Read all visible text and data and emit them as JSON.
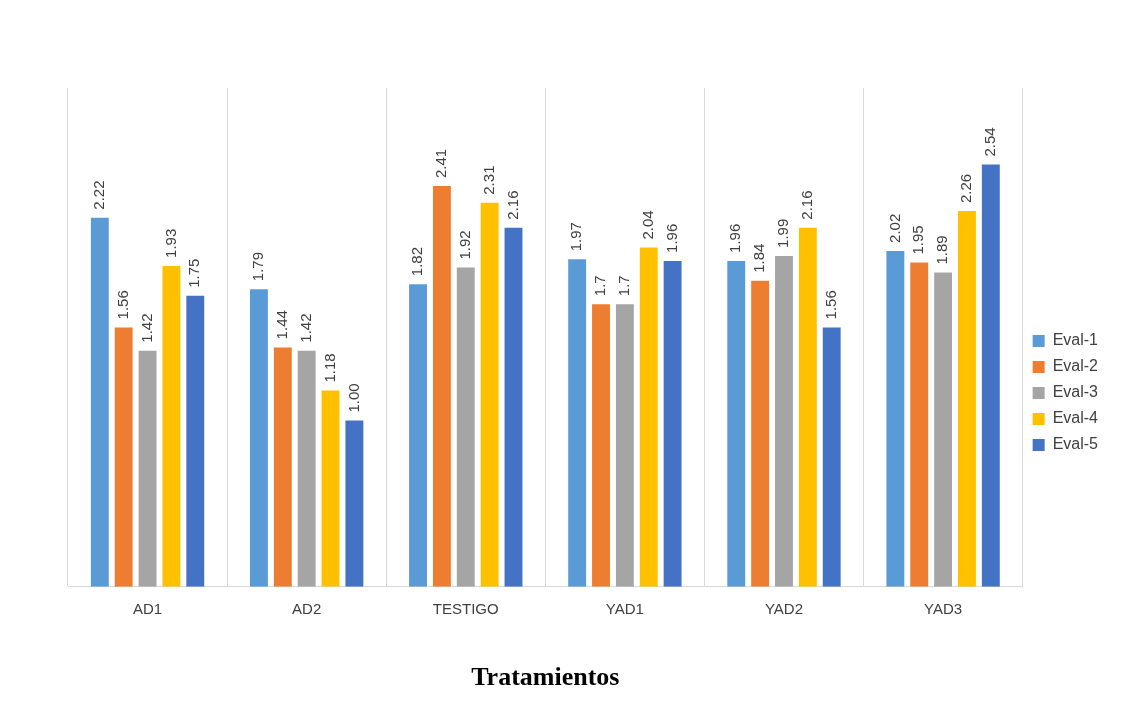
{
  "chart_data": {
    "type": "bar",
    "xlabel": "Tratamientos",
    "categories": [
      "AD1",
      "AD2",
      "TESTIGO",
      "YAD1",
      "YAD2",
      "YAD3"
    ],
    "series": [
      {
        "name": "Eval-1",
        "color": "#5b9bd5",
        "values": [
          2.22,
          1.79,
          1.82,
          1.97,
          1.96,
          2.02
        ],
        "value_labels": [
          "2.22",
          "1.79",
          "1.82",
          "1.97",
          "1.96",
          "2.02"
        ]
      },
      {
        "name": "Eval-2",
        "color": "#ed7d31",
        "values": [
          1.56,
          1.44,
          2.41,
          1.7,
          1.84,
          1.95
        ],
        "value_labels": [
          "1.56",
          "1.44",
          "2.41",
          "1.7",
          "1.84",
          "1.95"
        ]
      },
      {
        "name": "Eval-3",
        "color": "#a5a5a5",
        "values": [
          1.42,
          1.42,
          1.92,
          1.7,
          1.99,
          1.89
        ],
        "value_labels": [
          "1.42",
          "1.42",
          "1.92",
          "1.7",
          "1.99",
          "1.89"
        ]
      },
      {
        "name": "Eval-4",
        "color": "#ffc000",
        "values": [
          1.93,
          1.18,
          2.31,
          2.04,
          2.16,
          2.26
        ],
        "value_labels": [
          "1.93",
          "1.18",
          "2.31",
          "2.04",
          "2.16",
          "2.26"
        ]
      },
      {
        "name": "Eval-5",
        "color": "#4472c4",
        "values": [
          1.75,
          1.0,
          2.16,
          1.96,
          1.56,
          2.54
        ],
        "value_labels": [
          "1.75",
          "1.00",
          "2.16",
          "1.96",
          "1.56",
          "2.54"
        ]
      }
    ],
    "grid": "x",
    "legend": "right"
  }
}
